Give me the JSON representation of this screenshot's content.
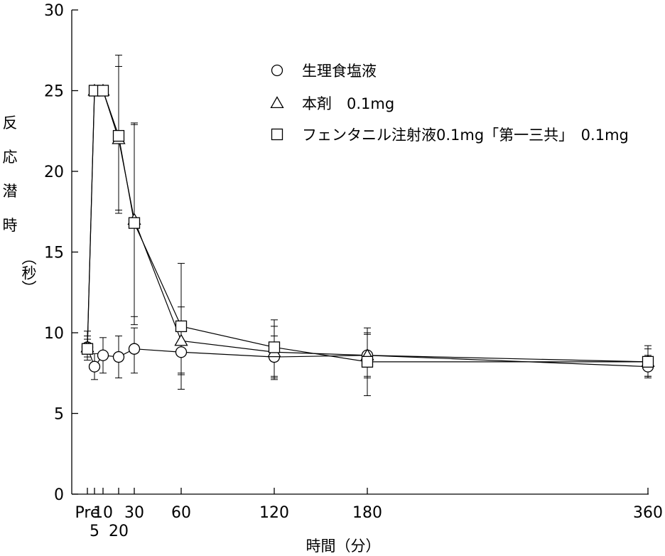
{
  "chart_data": {
    "type": "line",
    "xlabel": "時間（分）",
    "ylabel_chars": [
      "反",
      "応",
      "潜",
      "時",
      "（秒）"
    ],
    "ylim": [
      0,
      30
    ],
    "yticks": [
      0,
      5,
      10,
      15,
      20,
      25,
      30
    ],
    "x_ticks": [
      {
        "x": 0,
        "label": "",
        "row": 0
      },
      {
        "x": 5,
        "label": "",
        "row": 0
      },
      {
        "x": 10,
        "label": "",
        "row": 0
      },
      {
        "x": 20,
        "label": "",
        "row": 0
      },
      {
        "x": 30,
        "label": "",
        "row": 0
      },
      {
        "x": 60,
        "label": "",
        "row": 0
      },
      {
        "x": 120,
        "label": "",
        "row": 0
      },
      {
        "x": 180,
        "label": "",
        "row": 0
      },
      {
        "x": 360,
        "label": "",
        "row": 0
      }
    ],
    "x_tick_labels_row1": [
      {
        "x": 0,
        "label": "Pre"
      },
      {
        "x": 10,
        "label": "10"
      },
      {
        "x": 30,
        "label": "30"
      },
      {
        "x": 60,
        "label": "60"
      },
      {
        "x": 120,
        "label": "120"
      },
      {
        "x": 180,
        "label": "180"
      },
      {
        "x": 360,
        "label": "360"
      }
    ],
    "x_tick_labels_row2": [
      {
        "x": 5,
        "label": "5"
      },
      {
        "x": 20,
        "label": "20"
      }
    ],
    "x": [
      0,
      5,
      10,
      20,
      30,
      60,
      120,
      180,
      360
    ],
    "legend_placement": "top-right",
    "series": [
      {
        "name": "生理食塩液",
        "marker": "circle",
        "values": [
          9.1,
          7.9,
          8.6,
          8.5,
          9.0,
          8.8,
          8.5,
          8.6,
          7.9
        ],
        "err_low": [
          8.7,
          7.1,
          7.5,
          7.2,
          7.5,
          7.4,
          7.2,
          7.3,
          7.2
        ],
        "err_high": [
          9.6,
          8.7,
          9.7,
          9.8,
          10.3,
          10.2,
          9.8,
          9.9,
          8.6
        ]
      },
      {
        "name": "本剤　0.1mg",
        "marker": "triangle",
        "values": [
          9.1,
          25.0,
          25.0,
          22.0,
          17.0,
          9.5,
          8.8,
          8.6,
          8.2
        ],
        "err_low": [
          8.5,
          25.0,
          25.0,
          17.4,
          11.0,
          7.5,
          7.3,
          7.2,
          7.3
        ],
        "err_high": [
          9.8,
          25.0,
          25.0,
          26.5,
          22.9,
          11.6,
          10.4,
          10.0,
          9.0
        ]
      },
      {
        "name": "フェンタニル注射液0.1mg「第一三共」　0.1mg",
        "marker": "square",
        "values": [
          9.0,
          25.0,
          25.0,
          22.2,
          16.8,
          10.4,
          9.1,
          8.2,
          8.2
        ],
        "err_low": [
          8.3,
          25.0,
          25.0,
          17.6,
          10.5,
          6.5,
          7.1,
          6.1,
          7.3
        ],
        "err_high": [
          10.1,
          25.0,
          25.0,
          27.2,
          23.0,
          14.3,
          10.8,
          10.3,
          9.2
        ]
      }
    ]
  }
}
